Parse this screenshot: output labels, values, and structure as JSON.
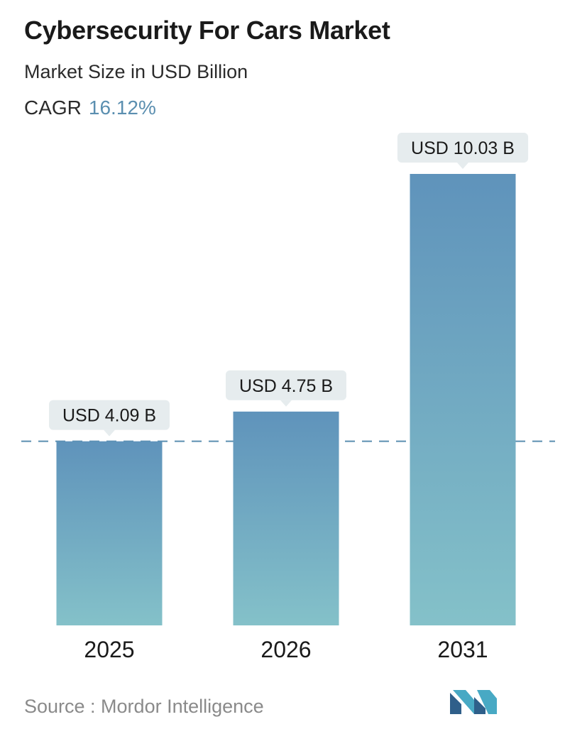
{
  "header": {
    "title": "Cybersecurity For Cars Market",
    "subtitle": "Market Size in USD Billion",
    "cagr_label": "CAGR",
    "cagr_value": "16.12%"
  },
  "footer": {
    "source": "Source :  Mordor Intelligence",
    "logo_icon": "mordor-intelligence-logo-icon"
  },
  "colors": {
    "bar_top": "#5f93bb",
    "bar_bottom": "#84c1c9",
    "label_bg": "#e6ecee",
    "accent": "#5b8fb0",
    "reference_line": "#5b8fb0"
  },
  "chart_data": {
    "type": "bar",
    "categories": [
      "2025",
      "2026",
      "2031"
    ],
    "values": [
      4.09,
      4.75,
      10.03
    ],
    "data_labels": [
      "USD 4.09 B",
      "USD 4.75 B",
      "USD 10.03 B"
    ],
    "unit": "USD Billion",
    "reference_line": 4.09,
    "ylim": [
      0,
      10.03
    ],
    "grid": false,
    "legend": "none"
  }
}
